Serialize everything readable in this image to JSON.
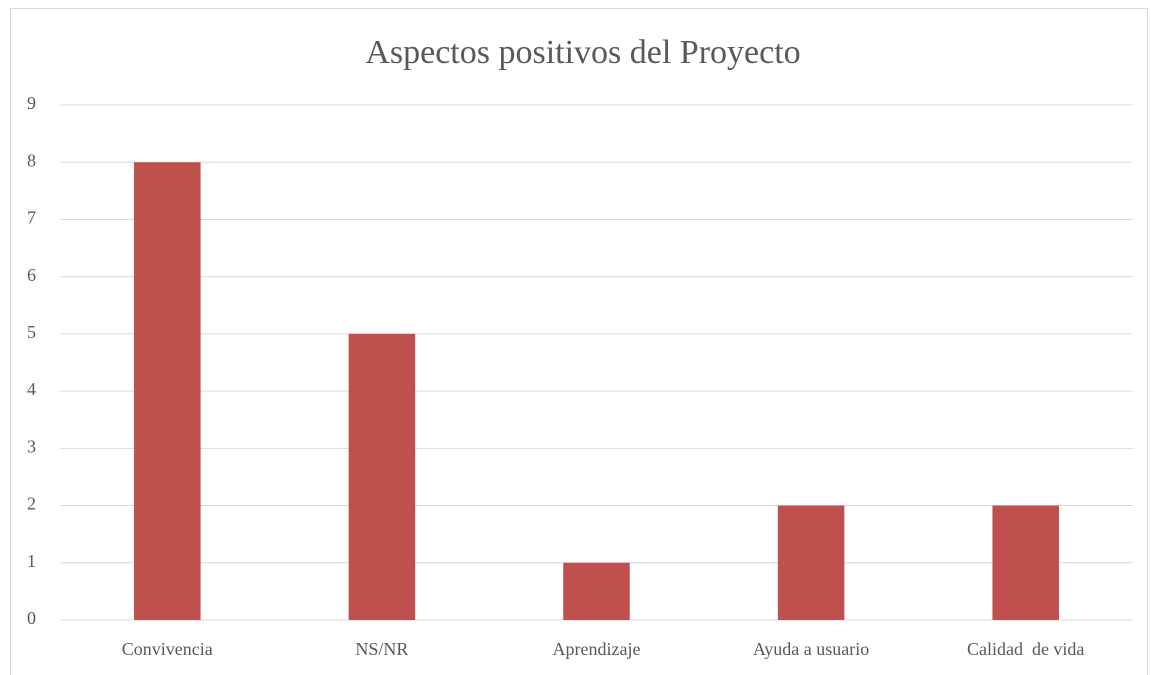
{
  "chart_data": {
    "type": "bar",
    "title": "Aspectos positivos del Proyecto",
    "categories": [
      "Convivencia",
      "NS/NR",
      "Aprendizaje",
      "Ayuda a usuario",
      "Calidad  de vida"
    ],
    "values": [
      8,
      5,
      1,
      2,
      2
    ],
    "color": "#c0504d",
    "ylim": [
      0,
      9
    ],
    "yticks": [
      0,
      1,
      2,
      3,
      4,
      5,
      6,
      7,
      8,
      9
    ],
    "grid": true
  }
}
